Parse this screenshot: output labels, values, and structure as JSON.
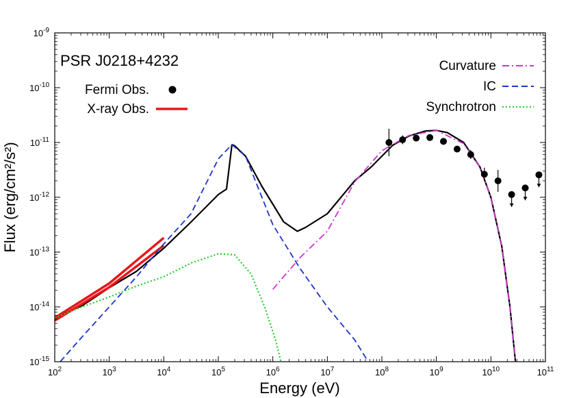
{
  "chart_data": {
    "type": "line",
    "title": "PSR J0218+4232",
    "xlabel": "Energy (eV)",
    "ylabel": "Flux (erg/cm²/s²)",
    "x_scale": "log",
    "y_scale": "log",
    "xlim": [
      100.0,
      100000000000.0
    ],
    "ylim": [
      1e-15,
      1e-09
    ],
    "grid": false,
    "x_ticks": [
      {
        "exp": "2"
      },
      {
        "exp": "3"
      },
      {
        "exp": "4"
      },
      {
        "exp": "5"
      },
      {
        "exp": "6"
      },
      {
        "exp": "7"
      },
      {
        "exp": "8"
      },
      {
        "exp": "9"
      },
      {
        "exp": "10"
      },
      {
        "exp": "11"
      }
    ],
    "y_ticks": [
      {
        "exp": "-15"
      },
      {
        "exp": "-14"
      },
      {
        "exp": "-13"
      },
      {
        "exp": "-12"
      },
      {
        "exp": "-11"
      },
      {
        "exp": "-10"
      },
      {
        "exp": "-9"
      }
    ],
    "legend_left": [
      {
        "label": "Fermi Obs.",
        "style": "points",
        "color": "#000000"
      },
      {
        "label": "X-ray Obs.",
        "style": "thick-line",
        "color": "#e8161b"
      }
    ],
    "legend_right": [
      {
        "label": "Curvature",
        "style": "dash-dot",
        "color": "#cc33cc"
      },
      {
        "label": "IC",
        "style": "dashed",
        "color": "#1a33cc"
      },
      {
        "label": "Synchrotron",
        "style": "dotted",
        "color": "#22cc22"
      }
    ],
    "series": [
      {
        "name": "Total",
        "style": "solid",
        "color": "#000000",
        "width": 2.2,
        "points": [
          [
            2,
            -14.2
          ],
          [
            2.5,
            -13.98
          ],
          [
            3,
            -13.65
          ],
          [
            3.5,
            -13.35
          ],
          [
            4,
            -12.93
          ],
          [
            4.5,
            -12.45
          ],
          [
            4.8,
            -12.15
          ],
          [
            5,
            -11.95
          ],
          [
            5.15,
            -11.85
          ],
          [
            5.25,
            -11.04
          ],
          [
            5.25,
            -11.04
          ],
          [
            5.3,
            -11.06
          ],
          [
            5.5,
            -11.25
          ],
          [
            5.8,
            -11.8
          ],
          [
            6.2,
            -12.45
          ],
          [
            6.45,
            -12.62
          ],
          [
            6.6,
            -12.55
          ],
          [
            7,
            -12.3
          ],
          [
            7.5,
            -11.7
          ],
          [
            7.8,
            -11.45
          ],
          [
            8.2,
            -11.05
          ],
          [
            8.5,
            -10.88
          ],
          [
            8.8,
            -10.79
          ],
          [
            9.0,
            -10.78
          ],
          [
            9.2,
            -10.82
          ],
          [
            9.5,
            -11.0
          ],
          [
            9.8,
            -11.45
          ],
          [
            10.0,
            -12.0
          ],
          [
            10.2,
            -12.9
          ],
          [
            10.35,
            -14.0
          ],
          [
            10.45,
            -15.0
          ]
        ]
      },
      {
        "name": "X-ray Obs. (upper)",
        "style": "solid",
        "color": "#e8161b",
        "width": 3.5,
        "points": [
          [
            2,
            -14.2
          ],
          [
            3,
            -13.57
          ],
          [
            4,
            -12.74
          ]
        ]
      },
      {
        "name": "X-ray Obs. (lower)",
        "style": "solid",
        "color": "#e8161b",
        "width": 3.5,
        "points": [
          [
            2,
            -14.25
          ],
          [
            3,
            -13.64
          ],
          [
            4,
            -12.88
          ]
        ]
      },
      {
        "name": "IC",
        "style": "dashed",
        "color": "#1a33cc",
        "width": 1.8,
        "points": [
          [
            2.1,
            -15.0
          ],
          [
            2.5,
            -14.55
          ],
          [
            3,
            -14.0
          ],
          [
            3.5,
            -13.45
          ],
          [
            4,
            -12.85
          ],
          [
            4.5,
            -12.3
          ],
          [
            5,
            -11.3
          ],
          [
            5.25,
            -11.04
          ],
          [
            5.5,
            -11.25
          ],
          [
            6,
            -12.5
          ],
          [
            6.5,
            -13.3
          ],
          [
            7,
            -14.0
          ],
          [
            7.5,
            -14.6
          ],
          [
            7.75,
            -15.0
          ]
        ]
      },
      {
        "name": "Synchrotron",
        "style": "dotted",
        "color": "#22cc22",
        "width": 2.2,
        "points": [
          [
            2,
            -14.2
          ],
          [
            2.5,
            -14.0
          ],
          [
            3,
            -13.82
          ],
          [
            3.5,
            -13.62
          ],
          [
            4,
            -13.45
          ],
          [
            4.5,
            -13.2
          ],
          [
            5,
            -13.03
          ],
          [
            5.3,
            -13.05
          ],
          [
            5.6,
            -13.4
          ],
          [
            5.85,
            -14.0
          ],
          [
            6.05,
            -14.6
          ],
          [
            6.15,
            -15.0
          ]
        ]
      },
      {
        "name": "Curvature",
        "style": "dash-dot",
        "color": "#cc33cc",
        "width": 1.8,
        "points": [
          [
            6,
            -13.68
          ],
          [
            6.5,
            -13.1
          ],
          [
            7,
            -12.62
          ],
          [
            7.5,
            -11.72
          ],
          [
            8,
            -11.15
          ],
          [
            8.5,
            -10.87
          ],
          [
            9,
            -10.78
          ],
          [
            9.5,
            -11.02
          ],
          [
            9.8,
            -11.45
          ],
          [
            10.0,
            -12.0
          ],
          [
            10.2,
            -12.9
          ],
          [
            10.35,
            -14.0
          ],
          [
            10.45,
            -15.0
          ]
        ]
      }
    ],
    "fermi_points": [
      {
        "x": 8.13,
        "y": -11.0,
        "xerr": 0.06,
        "yerr": 0.25,
        "upper_limit": false
      },
      {
        "x": 8.38,
        "y": -10.95,
        "xerr": 0.06,
        "yerr": 0.08,
        "upper_limit": false
      },
      {
        "x": 8.63,
        "y": -10.92,
        "xerr": 0.06,
        "yerr": 0.05,
        "upper_limit": false
      },
      {
        "x": 8.88,
        "y": -10.91,
        "xerr": 0.06,
        "yerr": 0.05,
        "upper_limit": false
      },
      {
        "x": 9.13,
        "y": -10.98,
        "xerr": 0.06,
        "yerr": 0.06,
        "upper_limit": false
      },
      {
        "x": 9.38,
        "y": -11.12,
        "xerr": 0.06,
        "yerr": 0.06,
        "upper_limit": false
      },
      {
        "x": 9.63,
        "y": -11.22,
        "xerr": 0.06,
        "yerr": 0.08,
        "upper_limit": false
      },
      {
        "x": 9.88,
        "y": -11.58,
        "xerr": 0.06,
        "yerr": 0.12,
        "upper_limit": false
      },
      {
        "x": 10.13,
        "y": -11.7,
        "xerr": 0.06,
        "yerr": 0.2,
        "upper_limit": false
      },
      {
        "x": 10.38,
        "y": -11.95,
        "xerr": 0.06,
        "yerr": 0,
        "upper_limit": true
      },
      {
        "x": 10.63,
        "y": -11.83,
        "xerr": 0.06,
        "yerr": 0,
        "upper_limit": true
      },
      {
        "x": 10.88,
        "y": -11.59,
        "xerr": 0.06,
        "yerr": 0,
        "upper_limit": true
      }
    ]
  }
}
